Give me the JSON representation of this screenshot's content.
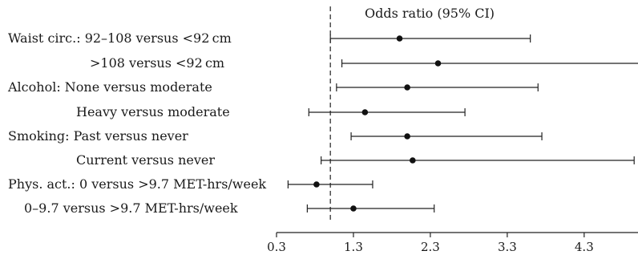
{
  "chart_data": {
    "type": "forest",
    "title": "Odds ratio (95% CI)",
    "xlim": [
      0.3,
      5.0
    ],
    "ticks": [
      "0.3",
      "1.3",
      "2.3",
      "3.3",
      "4.3"
    ],
    "tick_values": [
      0.3,
      1.3,
      2.3,
      3.3,
      4.3
    ],
    "reference_line": 1.0,
    "rows": [
      {
        "label": "Waist circ.: 92–108 versus <92 cm",
        "or": 1.9,
        "lo": 1.0,
        "hi": 3.6
      },
      {
        "label": ">108 versus <92 cm",
        "or": 2.4,
        "lo": 1.15,
        "hi": 5.0
      },
      {
        "label": "Alcohol:  None versus moderate",
        "or": 2.0,
        "lo": 1.08,
        "hi": 3.7
      },
      {
        "label": "Heavy versus moderate",
        "or": 1.45,
        "lo": 0.72,
        "hi": 2.75
      },
      {
        "label": "Smoking: Past versus never",
        "or": 2.0,
        "lo": 1.27,
        "hi": 3.75
      },
      {
        "label": "Current versus never",
        "or": 2.07,
        "lo": 0.88,
        "hi": 4.95
      },
      {
        "label": "Phys. act.: 0 versus >9.7 MET-hrs/week",
        "or": 0.82,
        "lo": 0.45,
        "hi": 1.55
      },
      {
        "label": "0–9.7 versus >9.7 MET-hrs/week",
        "or": 1.3,
        "lo": 0.7,
        "hi": 2.35
      }
    ]
  }
}
